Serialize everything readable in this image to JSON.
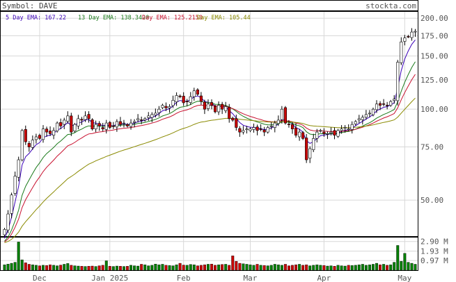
{
  "header": {
    "symbol_label": "Symbol: DAVE",
    "site": "stockta.com"
  },
  "legend": [
    {
      "label": "5 Day EMA: 167.22",
      "color": "#3a00b8"
    },
    {
      "label": "13 Day EMA: 138.3420",
      "color": "#1a7a1a"
    },
    {
      "label": "Day EMA: 125.2150",
      "color": "#c8102e"
    },
    {
      "label": "Day EMA: 105.44",
      "color": "#8a8a00"
    }
  ],
  "colors": {
    "up": "#008000",
    "down": "#cc0000",
    "ema5": "#3a00b8",
    "ema13": "#1a7a1a",
    "ema_red": "#c8102e",
    "ema_olive": "#8a8a00",
    "grid": "#d8d8d8",
    "frame": "#000000"
  },
  "chart_data": {
    "type": "candlestick",
    "price_axis": {
      "scale": "log",
      "ticks": [
        "200.00",
        "175.00",
        "150.00",
        "125.00",
        "100.00",
        "75.00",
        "50.00"
      ],
      "tick_values": [
        200,
        175,
        150,
        125,
        100,
        75,
        50
      ],
      "range": [
        38,
        210
      ]
    },
    "volume_axis": {
      "ticks": [
        "2.90 M",
        "1.93 M",
        "0.97 M"
      ],
      "tick_values": [
        2.9,
        1.93,
        0.97
      ],
      "range": [
        0,
        3.3
      ]
    },
    "x_labels": [
      {
        "label": "Dec",
        "index": 10
      },
      {
        "label": "Jan 2025",
        "index": 30
      },
      {
        "label": "Feb",
        "index": 51
      },
      {
        "label": "Mar",
        "index": 70
      },
      {
        "label": "Apr",
        "index": 91
      },
      {
        "label": "May",
        "index": 114
      }
    ],
    "closes": [
      40,
      45,
      52,
      60,
      68,
      85,
      78,
      75,
      79,
      81,
      80,
      86,
      84,
      83,
      85,
      90,
      88,
      92,
      95,
      84,
      89,
      93,
      92,
      95,
      93,
      86,
      89,
      88,
      86,
      90,
      87,
      88,
      91,
      89,
      90,
      88,
      90,
      91,
      93,
      92,
      93,
      95,
      96,
      97,
      100,
      103,
      101,
      102,
      107,
      111,
      110,
      105,
      106,
      110,
      115,
      112,
      106,
      100,
      104,
      103,
      98,
      103,
      100,
      102,
      93,
      92,
      87,
      84,
      85,
      86,
      86,
      87,
      85,
      86,
      84,
      87,
      88,
      90,
      92,
      100,
      90,
      89,
      86,
      82,
      84,
      80,
      68,
      74,
      80,
      84,
      85,
      83,
      83,
      84,
      82,
      85,
      86,
      87,
      86,
      89,
      91,
      93,
      94,
      96,
      97,
      100,
      104,
      103,
      104,
      103,
      106,
      108,
      143,
      167,
      172,
      174,
      180,
      181
    ],
    "volumes": [
      0.55,
      0.62,
      0.7,
      0.8,
      2.85,
      1.05,
      0.75,
      0.6,
      0.55,
      0.5,
      0.45,
      0.5,
      0.48,
      0.55,
      0.5,
      0.45,
      0.52,
      0.6,
      0.68,
      0.5,
      0.45,
      0.42,
      0.4,
      0.38,
      0.4,
      0.42,
      0.38,
      0.45,
      0.5,
      0.95,
      0.4,
      0.38,
      0.42,
      0.4,
      0.38,
      0.4,
      0.5,
      0.45,
      0.42,
      0.6,
      0.55,
      0.45,
      0.5,
      0.62,
      0.55,
      0.6,
      0.5,
      0.48,
      0.45,
      0.55,
      0.7,
      0.52,
      0.5,
      0.58,
      0.55,
      0.45,
      0.5,
      0.55,
      0.6,
      0.62,
      0.5,
      0.55,
      0.58,
      0.6,
      0.5,
      1.45,
      0.9,
      0.7,
      0.65,
      0.6,
      0.55,
      0.5,
      0.6,
      0.5,
      0.48,
      0.45,
      0.5,
      0.6,
      0.55,
      0.5,
      0.6,
      0.45,
      0.5,
      0.55,
      0.6,
      0.5,
      0.55,
      0.45,
      0.5,
      0.55,
      0.5,
      0.48,
      0.42,
      0.45,
      0.4,
      0.5,
      0.45,
      0.42,
      0.5,
      0.48,
      0.5,
      0.55,
      0.6,
      0.5,
      0.55,
      0.6,
      0.7,
      0.55,
      0.6,
      0.5,
      0.55,
      0.8,
      2.5,
      0.9,
      1.7,
      0.8,
      0.7,
      0.6
    ]
  }
}
